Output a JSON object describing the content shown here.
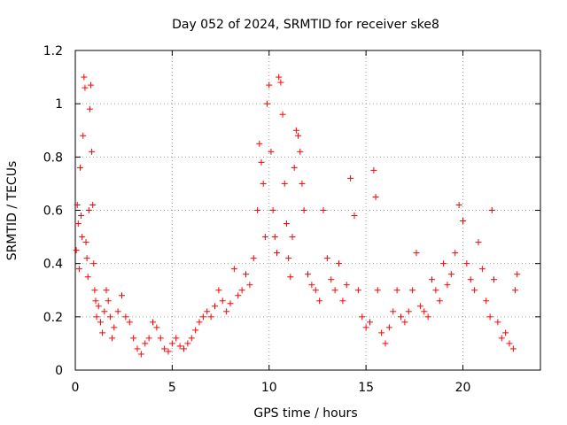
{
  "chart_data": {
    "type": "scatter",
    "title": "Day 052 of 2024, SRMTID for receiver ske8",
    "xlabel": "GPS time / hours",
    "ylabel": "SRMTID / TECUs",
    "xlim": [
      0,
      24
    ],
    "ylim": [
      0,
      1.2
    ],
    "xticks": [
      0,
      5,
      10,
      15,
      20
    ],
    "xtick_labels": [
      "0",
      "5",
      "10",
      "15",
      "20"
    ],
    "yticks": [
      0,
      0.2,
      0.4,
      0.6,
      0.8,
      1.0,
      1.2
    ],
    "ytick_labels": [
      "0",
      "0.2",
      "0.4",
      "0.6",
      "0.8",
      "1",
      "1.2"
    ],
    "grid": true,
    "marker": "+",
    "marker_color": "#ff0000",
    "series": [
      {
        "name": "SRMTID",
        "points": [
          [
            0.05,
            0.45
          ],
          [
            0.1,
            0.62
          ],
          [
            0.15,
            0.55
          ],
          [
            0.2,
            0.38
          ],
          [
            0.25,
            0.76
          ],
          [
            0.3,
            0.58
          ],
          [
            0.35,
            0.5
          ],
          [
            0.4,
            0.88
          ],
          [
            0.45,
            1.1
          ],
          [
            0.5,
            1.06
          ],
          [
            0.55,
            0.48
          ],
          [
            0.6,
            0.42
          ],
          [
            0.65,
            0.35
          ],
          [
            0.7,
            0.6
          ],
          [
            0.75,
            0.98
          ],
          [
            0.8,
            1.07
          ],
          [
            0.85,
            0.82
          ],
          [
            0.9,
            0.62
          ],
          [
            0.95,
            0.4
          ],
          [
            1.0,
            0.3
          ],
          [
            1.05,
            0.26
          ],
          [
            1.1,
            0.2
          ],
          [
            1.2,
            0.24
          ],
          [
            1.3,
            0.18
          ],
          [
            1.4,
            0.14
          ],
          [
            1.5,
            0.22
          ],
          [
            1.6,
            0.3
          ],
          [
            1.7,
            0.26
          ],
          [
            1.8,
            0.2
          ],
          [
            1.9,
            0.12
          ],
          [
            2.0,
            0.16
          ],
          [
            2.2,
            0.22
          ],
          [
            2.4,
            0.28
          ],
          [
            2.6,
            0.2
          ],
          [
            2.8,
            0.18
          ],
          [
            3.0,
            0.12
          ],
          [
            3.2,
            0.08
          ],
          [
            3.4,
            0.06
          ],
          [
            3.6,
            0.1
          ],
          [
            3.8,
            0.12
          ],
          [
            4.0,
            0.18
          ],
          [
            4.2,
            0.16
          ],
          [
            4.4,
            0.12
          ],
          [
            4.6,
            0.08
          ],
          [
            4.8,
            0.07
          ],
          [
            5.0,
            0.1
          ],
          [
            5.2,
            0.12
          ],
          [
            5.4,
            0.09
          ],
          [
            5.6,
            0.08
          ],
          [
            5.8,
            0.1
          ],
          [
            6.0,
            0.12
          ],
          [
            6.2,
            0.15
          ],
          [
            6.4,
            0.18
          ],
          [
            6.6,
            0.2
          ],
          [
            6.8,
            0.22
          ],
          [
            7.0,
            0.2
          ],
          [
            7.2,
            0.24
          ],
          [
            7.4,
            0.3
          ],
          [
            7.6,
            0.26
          ],
          [
            7.8,
            0.22
          ],
          [
            8.0,
            0.25
          ],
          [
            8.2,
            0.38
          ],
          [
            8.4,
            0.28
          ],
          [
            8.6,
            0.3
          ],
          [
            8.8,
            0.36
          ],
          [
            9.0,
            0.32
          ],
          [
            9.2,
            0.42
          ],
          [
            9.4,
            0.6
          ],
          [
            9.5,
            0.85
          ],
          [
            9.6,
            0.78
          ],
          [
            9.7,
            0.7
          ],
          [
            9.8,
            0.5
          ],
          [
            9.9,
            1.0
          ],
          [
            10.0,
            1.07
          ],
          [
            10.1,
            0.82
          ],
          [
            10.2,
            0.6
          ],
          [
            10.3,
            0.5
          ],
          [
            10.4,
            0.44
          ],
          [
            10.5,
            1.1
          ],
          [
            10.6,
            1.08
          ],
          [
            10.7,
            0.96
          ],
          [
            10.8,
            0.7
          ],
          [
            10.9,
            0.55
          ],
          [
            11.0,
            0.42
          ],
          [
            11.1,
            0.35
          ],
          [
            11.2,
            0.5
          ],
          [
            11.3,
            0.76
          ],
          [
            11.4,
            0.9
          ],
          [
            11.5,
            0.88
          ],
          [
            11.6,
            0.82
          ],
          [
            11.7,
            0.7
          ],
          [
            11.8,
            0.6
          ],
          [
            12.0,
            0.36
          ],
          [
            12.2,
            0.32
          ],
          [
            12.4,
            0.3
          ],
          [
            12.6,
            0.26
          ],
          [
            12.8,
            0.6
          ],
          [
            13.0,
            0.42
          ],
          [
            13.2,
            0.34
          ],
          [
            13.4,
            0.3
          ],
          [
            13.6,
            0.4
          ],
          [
            13.8,
            0.26
          ],
          [
            14.0,
            0.32
          ],
          [
            14.2,
            0.72
          ],
          [
            14.4,
            0.58
          ],
          [
            14.6,
            0.3
          ],
          [
            14.8,
            0.2
          ],
          [
            15.0,
            0.16
          ],
          [
            15.2,
            0.18
          ],
          [
            15.4,
            0.75
          ],
          [
            15.5,
            0.65
          ],
          [
            15.6,
            0.3
          ],
          [
            15.8,
            0.14
          ],
          [
            16.0,
            0.1
          ],
          [
            16.2,
            0.16
          ],
          [
            16.4,
            0.22
          ],
          [
            16.6,
            0.3
          ],
          [
            16.8,
            0.2
          ],
          [
            17.0,
            0.18
          ],
          [
            17.2,
            0.22
          ],
          [
            17.4,
            0.3
          ],
          [
            17.6,
            0.44
          ],
          [
            17.8,
            0.24
          ],
          [
            18.0,
            0.22
          ],
          [
            18.2,
            0.2
          ],
          [
            18.4,
            0.34
          ],
          [
            18.6,
            0.3
          ],
          [
            18.8,
            0.26
          ],
          [
            19.0,
            0.4
          ],
          [
            19.2,
            0.32
          ],
          [
            19.4,
            0.36
          ],
          [
            19.6,
            0.44
          ],
          [
            19.8,
            0.62
          ],
          [
            20.0,
            0.56
          ],
          [
            20.2,
            0.4
          ],
          [
            20.4,
            0.34
          ],
          [
            20.6,
            0.3
          ],
          [
            20.8,
            0.48
          ],
          [
            21.0,
            0.38
          ],
          [
            21.2,
            0.26
          ],
          [
            21.4,
            0.2
          ],
          [
            21.5,
            0.6
          ],
          [
            21.6,
            0.34
          ],
          [
            21.8,
            0.18
          ],
          [
            22.0,
            0.12
          ],
          [
            22.2,
            0.14
          ],
          [
            22.4,
            0.1
          ],
          [
            22.6,
            0.08
          ],
          [
            22.7,
            0.3
          ],
          [
            22.8,
            0.36
          ]
        ]
      }
    ]
  }
}
